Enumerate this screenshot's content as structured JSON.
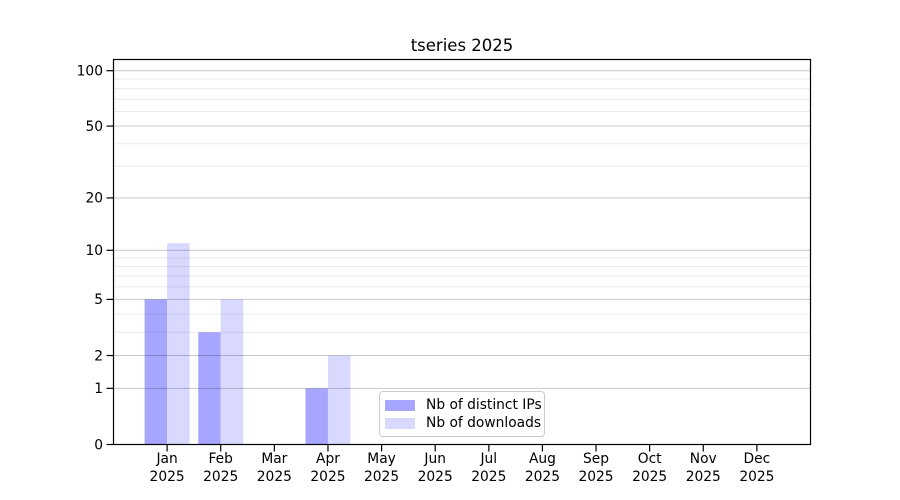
{
  "chart_data": {
    "type": "bar",
    "title": "tseries 2025",
    "x_tick_labels": [
      {
        "month": "Jan",
        "year": "2025"
      },
      {
        "month": "Feb",
        "year": "2025"
      },
      {
        "month": "Mar",
        "year": "2025"
      },
      {
        "month": "Apr",
        "year": "2025"
      },
      {
        "month": "May",
        "year": "2025"
      },
      {
        "month": "Jun",
        "year": "2025"
      },
      {
        "month": "Jul",
        "year": "2025"
      },
      {
        "month": "Aug",
        "year": "2025"
      },
      {
        "month": "Sep",
        "year": "2025"
      },
      {
        "month": "Oct",
        "year": "2025"
      },
      {
        "month": "Nov",
        "year": "2025"
      },
      {
        "month": "Dec",
        "year": "2025"
      }
    ],
    "series": [
      {
        "name": "Nb of distinct IPs",
        "color": "#a6a6ff",
        "values": [
          5,
          3,
          0,
          1,
          0,
          0,
          0,
          0,
          0,
          0,
          0,
          0
        ]
      },
      {
        "name": "Nb of downloads",
        "color": "#d9d9ff",
        "values": [
          11,
          5,
          0,
          2,
          0,
          0,
          0,
          0,
          0,
          0,
          0,
          0
        ]
      }
    ],
    "y_axis": {
      "scale": "log1p",
      "max": 115,
      "major_ticks": [
        0,
        1,
        2,
        5,
        10,
        20,
        50,
        100
      ],
      "minor_gridlines": [
        3,
        4,
        6,
        7,
        8,
        9,
        30,
        40,
        60,
        70,
        80,
        90
      ]
    },
    "grid": {
      "orientation": "horizontal",
      "major": true,
      "minor": true
    },
    "legend": {
      "position": "lower center",
      "entries": [
        "Nb of distinct IPs",
        "Nb of downloads"
      ]
    }
  },
  "colors": {
    "background": "#ffffff",
    "bar_distinct_ips": "#a6a6ff",
    "bar_downloads": "#d9d9ff",
    "grid_major": "rgba(0,0,0,0.21)",
    "grid_minor": "rgba(0,0,0,0.08)",
    "axis": "#000000",
    "text": "#000000",
    "legend_border": "#cccccc",
    "legend_background": "#ffffff"
  }
}
